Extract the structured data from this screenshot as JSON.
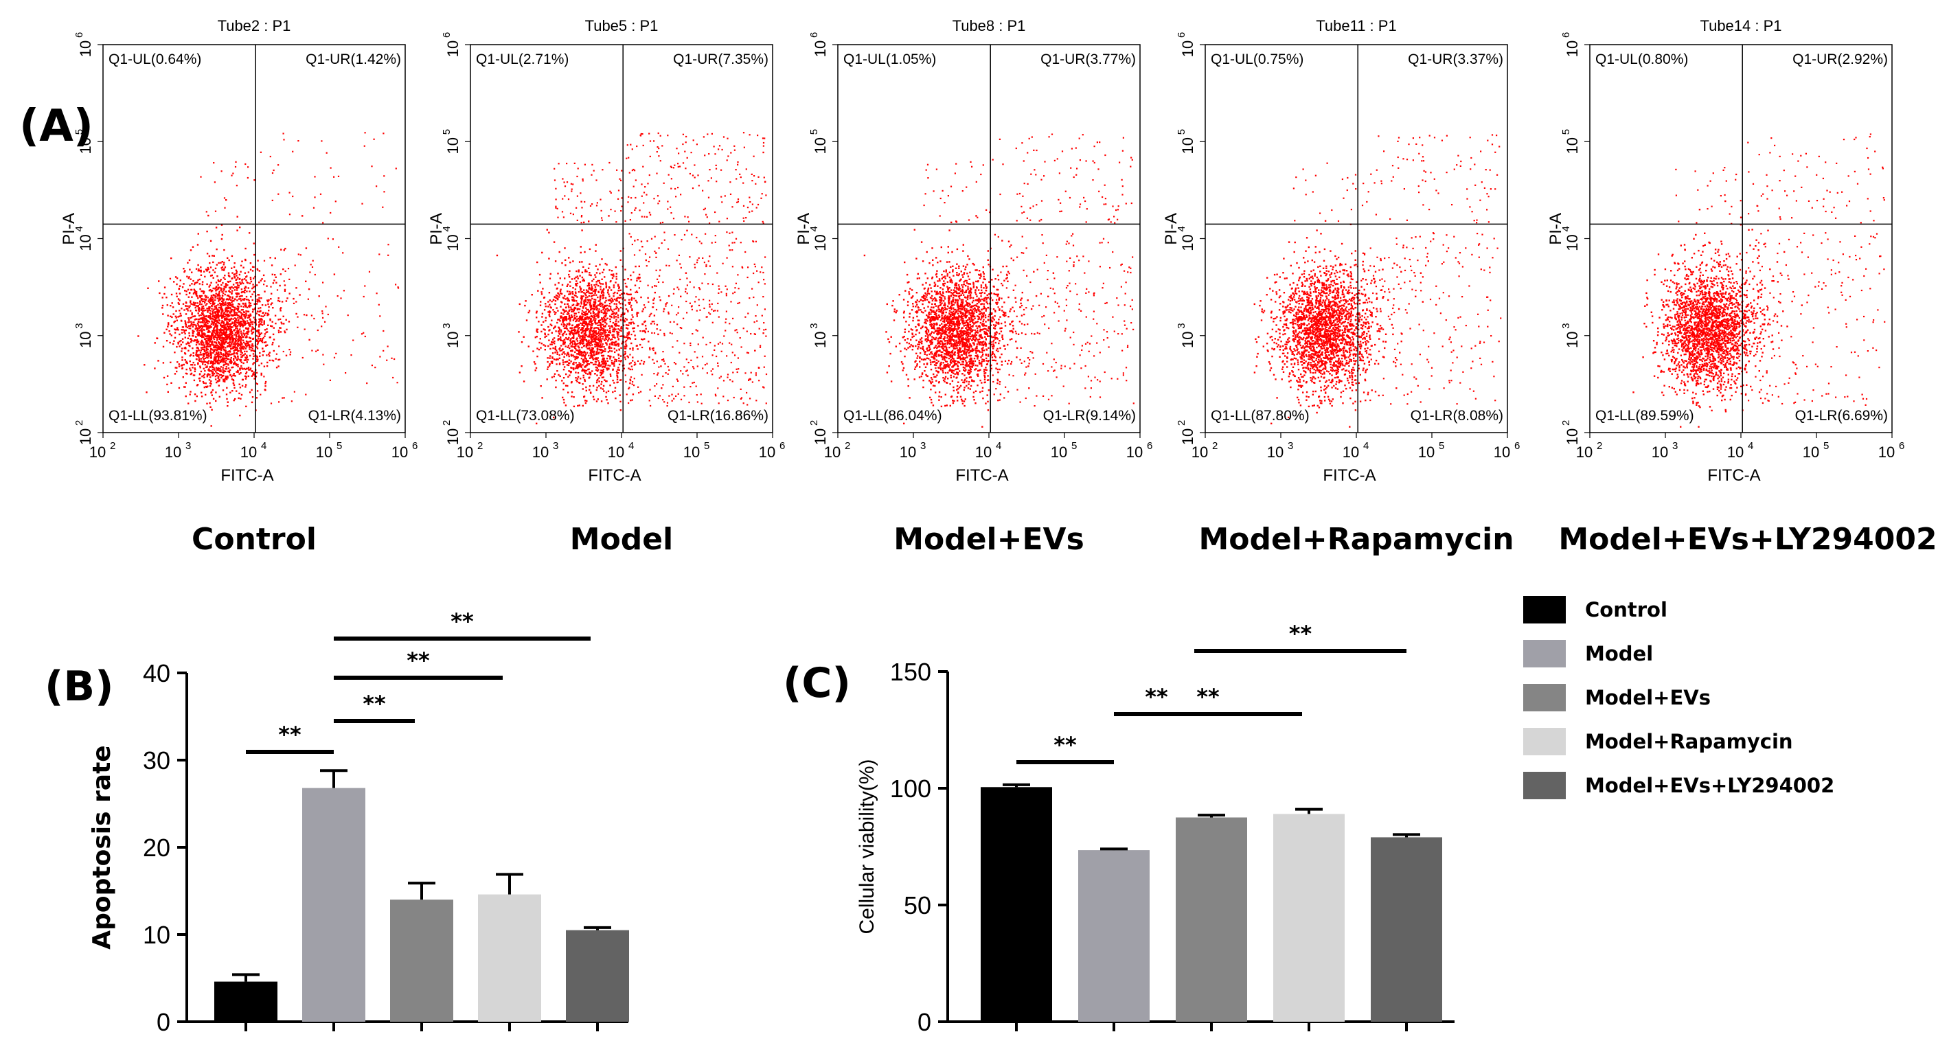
{
  "panels": {
    "a_label": "(A)",
    "b_label": "(B)",
    "c_label": "(C)"
  },
  "flow_plots": [
    {
      "tube": "Tube2 : P1",
      "group": "Control",
      "q_ul": "Q1-UL(0.64%)",
      "q_ur": "Q1-UR(1.42%)",
      "q_ll": "Q1-LL(93.81%)",
      "q_lr": "Q1-LR(4.13%)",
      "ul": 0.64,
      "ur": 1.42,
      "ll": 93.81,
      "lr": 4.13
    },
    {
      "tube": "Tube5 : P1",
      "group": "Model",
      "q_ul": "Q1-UL(2.71%)",
      "q_ur": "Q1-UR(7.35%)",
      "q_ll": "Q1-LL(73.08%)",
      "q_lr": "Q1-LR(16.86%)",
      "ul": 2.71,
      "ur": 7.35,
      "ll": 73.08,
      "lr": 16.86
    },
    {
      "tube": "Tube8 : P1",
      "group": "Model+EVs",
      "q_ul": "Q1-UL(1.05%)",
      "q_ur": "Q1-UR(3.77%)",
      "q_ll": "Q1-LL(86.04%)",
      "q_lr": "Q1-LR(9.14%)",
      "ul": 1.05,
      "ur": 3.77,
      "ll": 86.04,
      "lr": 9.14
    },
    {
      "tube": "Tube11 : P1",
      "group": "Model+Rapamycin",
      "q_ul": "Q1-UL(0.75%)",
      "q_ur": "Q1-UR(3.37%)",
      "q_ll": "Q1-LL(87.80%)",
      "q_lr": "Q1-LR(8.08%)",
      "ul": 0.75,
      "ur": 3.37,
      "ll": 87.8,
      "lr": 8.08
    },
    {
      "tube": "Tube14 : P1",
      "group": "Model+EVs+LY294002",
      "q_ul": "Q1-UL(0.80%)",
      "q_ur": "Q1-UR(2.92%)",
      "q_ll": "Q1-LL(89.59%)",
      "q_lr": "Q1-LR(6.69%)",
      "ul": 0.8,
      "ur": 2.92,
      "ll": 89.59,
      "lr": 6.69
    }
  ],
  "flow_axes": {
    "xlabel": "FITC-A",
    "ylabel": "PI-A",
    "ticks": [
      "10",
      "10",
      "10",
      "10",
      "10"
    ],
    "exps": [
      "2",
      "3",
      "4",
      "5",
      "6"
    ],
    "dot_color": "#ff0000"
  },
  "legend": [
    {
      "label": "Control",
      "color": "#000000"
    },
    {
      "label": "Model",
      "color": "#a0a0a8"
    },
    {
      "label": "Model+EVs",
      "color": "#858585"
    },
    {
      "label": "Model+Rapamycin",
      "color": "#d6d6d6"
    },
    {
      "label": "Model+EVs+LY294002",
      "color": "#636363"
    }
  ],
  "chart_data": [
    {
      "type": "bar",
      "panel": "B",
      "ylabel": "Apoptosis rate",
      "ylim": [
        0,
        40
      ],
      "yticks": [
        "0",
        "10",
        "20",
        "30",
        "40"
      ],
      "categories": [
        "Control",
        "Model",
        "Model+EVs",
        "Model+Rapamycin",
        "Model+EVs+LY294002"
      ],
      "values": [
        4.6,
        26.8,
        14.0,
        14.6,
        10.5
      ],
      "errors": [
        0.8,
        2.0,
        1.9,
        2.3,
        0.3
      ],
      "significance": [
        {
          "from": 0,
          "to": 1,
          "label": "**"
        },
        {
          "from": 1,
          "to": 2,
          "label": "**"
        },
        {
          "from": 1,
          "to": 3,
          "label": "**"
        },
        {
          "from": 1,
          "to": 4,
          "label": "**"
        }
      ]
    },
    {
      "type": "bar",
      "panel": "C",
      "ylabel": "Cellular viability(%)",
      "ylim": [
        0,
        150
      ],
      "yticks": [
        "0",
        "50",
        "100",
        "150"
      ],
      "categories": [
        "Control",
        "Model",
        "Model+EVs",
        "Model+Rapamycin",
        "Model+EVs+LY294002"
      ],
      "values": [
        100.5,
        73.5,
        87.5,
        89,
        79
      ],
      "errors": [
        1.0,
        0.5,
        1.0,
        2.0,
        1.2
      ],
      "significance": [
        {
          "from": 0,
          "to": 1,
          "label": "**"
        },
        {
          "from": 1,
          "to": 2,
          "label": "**"
        },
        {
          "from": 1,
          "to": 3,
          "label": "**"
        },
        {
          "from": 2,
          "to": 4,
          "label": "**"
        }
      ]
    }
  ]
}
